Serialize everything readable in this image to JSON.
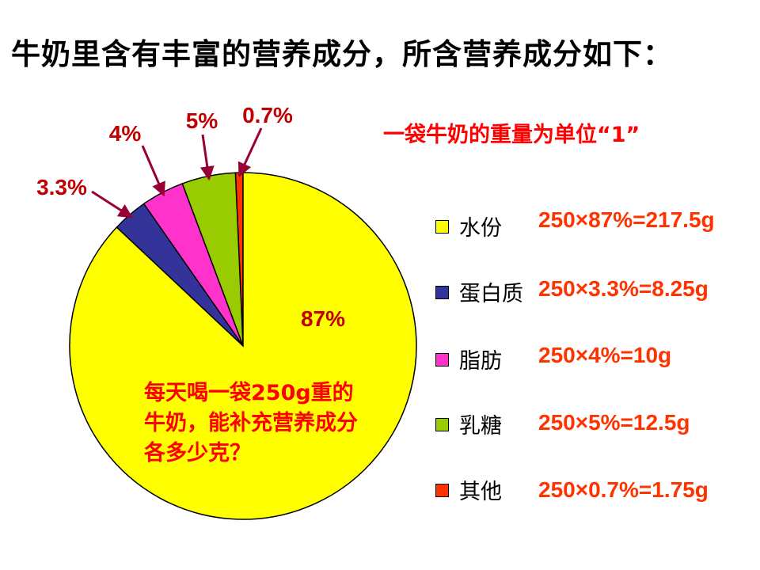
{
  "title": "牛奶里含有丰富的营养成分，所含营养成分如下：",
  "unit_note": "一袋牛奶的重量为单位“1”",
  "question": "每天喝一袋250g重的牛奶，能补充营养成分各多少克？",
  "chart_data": {
    "type": "pie",
    "title": "",
    "categories": [
      "水份",
      "蛋白质",
      "脂肪",
      "乳糖",
      "其他"
    ],
    "values": [
      87,
      3.3,
      4,
      5,
      0.7
    ],
    "labels": [
      "87%",
      "3.3%",
      "4%",
      "5%",
      "0.7%"
    ],
    "colors": [
      "#ffff00",
      "#333399",
      "#ff33cc",
      "#99cc00",
      "#ff3300"
    ],
    "legend_position": "right"
  },
  "calculations": [
    "250×87%=217.5g",
    "250×3.3%=8.25g",
    "250×4%=10g",
    "250×5%=12.5g",
    "250×0.7%=1.75g"
  ],
  "arrow_color": "#990033"
}
